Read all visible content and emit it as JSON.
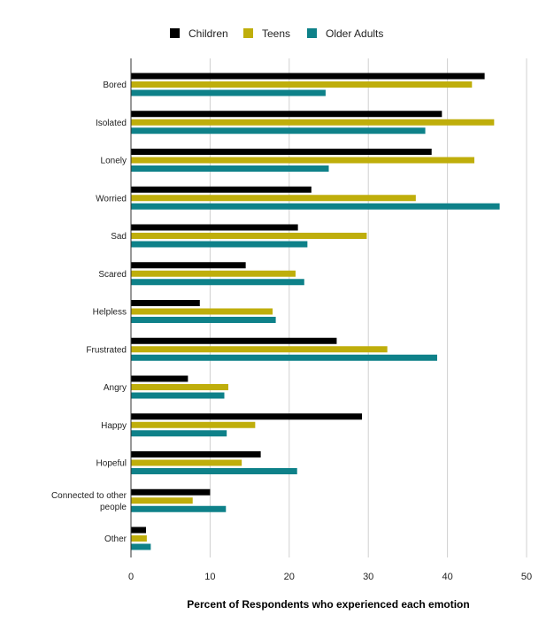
{
  "chart_data": {
    "type": "bar",
    "orientation": "horizontal",
    "xlabel": "Percent of Respondents who experienced each emotion",
    "ylabel": "",
    "xlim": [
      0,
      50
    ],
    "xticks": [
      "0",
      "10",
      "20",
      "30",
      "40",
      "50"
    ],
    "grid": "vertical",
    "legend_position": "top",
    "categories": [
      [
        "Bored"
      ],
      [
        "Isolated"
      ],
      [
        "Lonely"
      ],
      [
        "Worried"
      ],
      [
        "Sad"
      ],
      [
        "Scared"
      ],
      [
        "Helpless"
      ],
      [
        "Frustrated"
      ],
      [
        "Angry"
      ],
      [
        "Happy"
      ],
      [
        "Hopeful"
      ],
      [
        "Connected to other",
        "people"
      ],
      [
        "Other"
      ]
    ],
    "series": [
      {
        "name": "Children",
        "color": "#000000",
        "values": [
          44.7,
          39.3,
          38.0,
          22.8,
          21.1,
          14.5,
          8.7,
          26.0,
          7.2,
          29.2,
          16.4,
          10.0,
          1.9
        ]
      },
      {
        "name": "Teens",
        "color": "#bfae0b",
        "values": [
          43.1,
          45.9,
          43.4,
          36.0,
          29.8,
          20.8,
          17.9,
          32.4,
          12.3,
          15.7,
          14.0,
          7.8,
          2.0
        ]
      },
      {
        "name": "Older Adults",
        "color": "#0e8189",
        "values": [
          24.6,
          37.2,
          25.0,
          46.6,
          22.3,
          21.9,
          18.3,
          38.7,
          11.8,
          12.1,
          21.0,
          12.0,
          2.5
        ]
      }
    ]
  }
}
